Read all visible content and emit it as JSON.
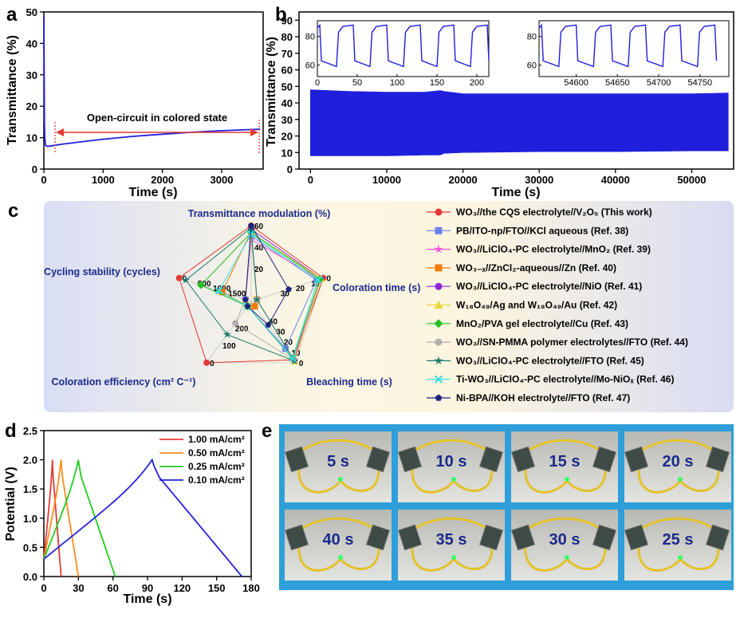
{
  "panels": {
    "a": "a",
    "b": "b",
    "c": "c",
    "d": "d",
    "e": "e"
  },
  "chart_data": [
    {
      "id": "a",
      "type": "line",
      "xlabel": "Time (s)",
      "ylabel": "Transmittance (%)",
      "xlim": [
        0,
        3700
      ],
      "ylim": [
        0,
        50
      ],
      "xticks": [
        0,
        1000,
        2000,
        3000
      ],
      "yticks": [
        0,
        10,
        20,
        30,
        40,
        50
      ],
      "annotation": "Open-circuit in colored state",
      "series": [
        {
          "color": "#1f1fdd",
          "x": [
            0,
            5,
            10,
            15,
            30,
            60,
            100,
            300,
            600,
            1000,
            1500,
            2000,
            2500,
            3000,
            3650
          ],
          "y": [
            48.5,
            30,
            15,
            10,
            7.5,
            7.2,
            7.3,
            7.9,
            8.6,
            9.5,
            10.4,
            11.1,
            11.7,
            12.2,
            12.7
          ]
        }
      ]
    },
    {
      "id": "b",
      "type": "line",
      "xlabel": "Time (s)",
      "ylabel": "Transmittance (%)",
      "xlim": [
        -1500,
        55500
      ],
      "ylim": [
        0,
        95
      ],
      "xticks": [
        0,
        10000,
        20000,
        30000,
        40000,
        50000
      ],
      "yticks": [
        0,
        10,
        20,
        30,
        40,
        50,
        60,
        70,
        80,
        90
      ],
      "color": "#1f1fdd",
      "envelope": {
        "x": [
          0,
          5000,
          10000,
          15000,
          17000,
          17500,
          20000,
          30000,
          40000,
          50000,
          54800
        ],
        "upper": [
          48,
          47,
          46.5,
          46.5,
          47.5,
          47,
          45.5,
          45.5,
          45.5,
          45.5,
          46
        ],
        "lower": [
          8,
          8,
          8,
          8.5,
          8.5,
          9.5,
          10,
          10.5,
          10.5,
          11,
          11
        ]
      },
      "insets": [
        {
          "xticks": [
            0,
            50,
            100,
            150,
            200
          ],
          "yticks": [
            60,
            80
          ],
          "xlim": [
            0,
            215
          ],
          "ylim": [
            52,
            91
          ],
          "period": 42,
          "high": 88,
          "low": 59
        },
        {
          "xticks": [
            54600,
            54650,
            54700,
            54750
          ],
          "yticks": [
            60,
            80
          ],
          "xlim": [
            54555,
            54785
          ],
          "ylim": [
            52,
            91
          ],
          "period": 42,
          "high": 88,
          "low": 59
        }
      ]
    },
    {
      "id": "c",
      "type": "radar",
      "axes": [
        "Transmittance modulation (%)",
        "Coloration time (s)",
        "Bleaching time (s)",
        "Coloration efficiency (cm² C⁻¹)",
        "Cycling stability (cycles)"
      ],
      "axis_ticks": [
        [
          "20",
          "40",
          "60"
        ],
        [
          "30",
          "20",
          "10",
          "0"
        ],
        [
          "40",
          "30",
          "20",
          "10",
          "0"
        ],
        [
          "200",
          "100",
          "0"
        ],
        [
          "1500",
          "1000",
          "500",
          "0"
        ]
      ],
      "series": [
        {
          "name": "WO₃//the CQS electrolyte//V₂O₅ (This work)",
          "color": "#e53935",
          "marker": "circle",
          "r": [
            1.0,
            1.0,
            0.95,
            1.0,
            1.0
          ]
        },
        {
          "name": "PB/ITO-np/FTO//KCl aqueous (Ref. 38)",
          "color": "#6b84e8",
          "marker": "square",
          "r": [
            0.85,
            0.9,
            0.75,
            0.0,
            0.0
          ]
        },
        {
          "name": "WO₃//LiClO₄-PC electrolyte//MnO₂ (Ref. 39)",
          "color": "#ff4fd8",
          "marker": "star",
          "r": [
            0.8,
            0.95,
            0.95,
            0.0,
            0.0
          ]
        },
        {
          "name": "WO₃₋ₓ//ZnCl₂-aqueous//Zn (Ref. 40)",
          "color": "#f57c00",
          "marker": "square",
          "r": [
            0.92,
            0.0,
            0.0,
            0.0,
            0.35
          ]
        },
        {
          "name": "WO₃//LiClO₄-PC electrolyte//NiO (Ref. 41)",
          "color": "#8e24d8",
          "marker": "circle",
          "r": [
            0.95,
            0.97,
            0.97,
            0.0,
            0.0
          ]
        },
        {
          "name": "W₁₈O₄₉/Ag and W₁₈O₄₉/Au (Ref. 42)",
          "color": "#e8d63a",
          "marker": "triangle",
          "r": [
            0.9,
            0.97,
            0.97,
            0.0,
            0.0
          ]
        },
        {
          "name": "MnO₂/PVA gel electrolyte//Cu (Ref. 43)",
          "color": "#22c022",
          "marker": "diamond",
          "r": [
            0.9,
            0.95,
            0.93,
            0.0,
            0.67
          ]
        },
        {
          "name": "WO₃//SN-PMMA polymer electrolytes//FTO (Ref. 44)",
          "color": "#b0b0b0",
          "marker": "circle",
          "r": [
            0.85,
            0.0,
            0.95,
            0.3,
            0.0
          ]
        },
        {
          "name": "WO₃//LiClO₄-PC electrolyte//FTO (Ref. 45)",
          "color": "#1a7a6e",
          "marker": "star",
          "r": [
            0.97,
            0.0,
            0.97,
            0.5,
            0.9
          ]
        },
        {
          "name": "Ti-WO₃//LiClO₄-PC electrolyte//Mo-NiOₓ (Ref. 46)",
          "color": "#30e0e0",
          "marker": "x",
          "r": [
            0.88,
            0.92,
            0.92,
            0.0,
            0.4
          ]
        },
        {
          "name": "Ni-BPA//KOH electrolyte//FTO (Ref. 47)",
          "color": "#1a237e",
          "marker": "pentagon",
          "r": [
            1.0,
            0.48,
            0.33,
            0.0,
            0.0
          ]
        }
      ]
    },
    {
      "id": "d",
      "type": "line",
      "xlabel": "Time (s)",
      "ylabel": "Potential (V)",
      "xlim": [
        0,
        180
      ],
      "ylim": [
        0,
        2.5
      ],
      "xticks": [
        0,
        30,
        60,
        90,
        120,
        150,
        180
      ],
      "yticks": [
        0.0,
        0.5,
        1.0,
        1.5,
        2.0,
        2.5
      ],
      "series": [
        {
          "name": "1.00 mA/cm²",
          "color": "#e53935",
          "peak_x": 7.5,
          "end_x": 15
        },
        {
          "name": "0.50 mA/cm²",
          "color": "#ff8c1a",
          "peak_x": 15,
          "end_x": 30
        },
        {
          "name": "0.25 mA/cm²",
          "color": "#22cc22",
          "peak_x": 30,
          "end_x": 62
        },
        {
          "name": "0.10 mA/cm²",
          "color": "#2222dd",
          "peak_x": 94,
          "end_x": 172
        }
      ]
    }
  ],
  "photos": {
    "labels": [
      "5 s",
      "10 s",
      "15 s",
      "20 s",
      "40 s",
      "35 s",
      "30 s",
      "25 s"
    ],
    "border_color": "#2e9fd9"
  }
}
